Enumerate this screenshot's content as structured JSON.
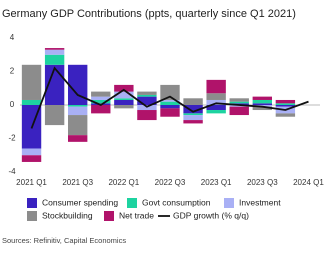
{
  "chart_data": {
    "type": "bar",
    "title": "Germany GDP Contributions (ppts, quarterly since Q1 2021)",
    "source": "Sources: Refinitiv, Capital Economics",
    "categories": [
      "2021 Q1",
      null,
      "2021 Q3",
      null,
      "2022 Q1",
      null,
      "2022 Q3",
      null,
      "2023 Q1",
      null,
      "2023 Q3",
      null,
      "2024 Q1"
    ],
    "ylim": [
      -4,
      4
    ],
    "yticks": [
      4,
      2,
      0,
      -2,
      -4
    ],
    "series": [
      {
        "name": "Consumer spending",
        "color": "#3a22c0",
        "values": [
          -2.6,
          2.4,
          2.4,
          0.1,
          0.3,
          0.5,
          -0.2,
          -0.5,
          -0.3,
          0.1,
          0.1,
          -0.1,
          null
        ]
      },
      {
        "name": "Govt consumption",
        "color": "#1dd3a0",
        "values": [
          0.3,
          0.6,
          -0.1,
          0.2,
          0.1,
          0.1,
          0.2,
          -0.1,
          -0.2,
          0.1,
          0.2,
          0.1,
          null
        ]
      },
      {
        "name": "Investment",
        "color": "#a9b0f5",
        "values": [
          -0.4,
          0.3,
          -0.5,
          0.2,
          0.4,
          -0.3,
          0.1,
          -0.3,
          0.3,
          -0.1,
          -0.1,
          -0.4,
          null
        ]
      },
      {
        "name": "Stockbuilding",
        "color": "#8c8c8c",
        "values": [
          2.1,
          -1.2,
          -1.2,
          0.3,
          -0.2,
          0.2,
          0.9,
          0.4,
          0.4,
          0.2,
          -0.2,
          -0.2,
          null
        ]
      },
      {
        "name": "Net trade",
        "color": "#b0136a",
        "values": [
          -0.4,
          0.1,
          -0.4,
          -0.5,
          0.4,
          -0.6,
          -0.5,
          -0.2,
          0.8,
          -0.5,
          0.2,
          0.2,
          null
        ]
      },
      {
        "name": "GDP growth (% q/q)",
        "type": "line",
        "color": "#111111",
        "values": [
          -1.4,
          2.2,
          0.6,
          0.0,
          0.9,
          -0.1,
          0.5,
          -0.4,
          0.1,
          0.0,
          -0.1,
          -0.3,
          0.2
        ]
      }
    ]
  }
}
